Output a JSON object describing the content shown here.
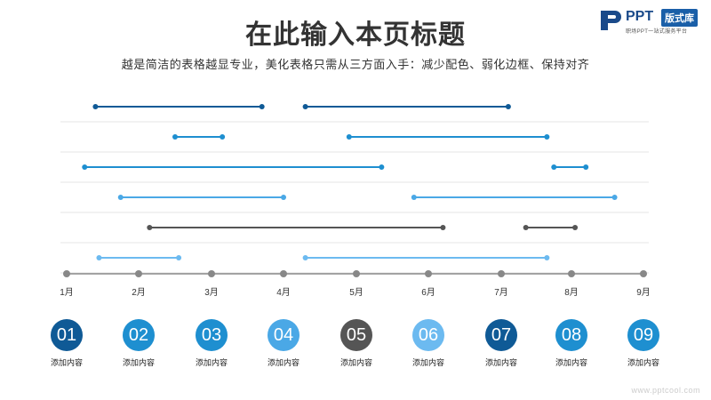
{
  "header": {
    "title": "在此输入本页标题",
    "subtitle": "越是简洁的表格越显专业，美化表格只需从三方面入手：减少配色、弱化边框、保持对齐"
  },
  "logo": {
    "brand": "PPT",
    "badge": "版式库",
    "tagline": "职场PPT一站式服务平台"
  },
  "colors": {
    "dark_blue": "#0f5a96",
    "mid_blue": "#1e8fd0",
    "light_blue": "#4aa8e6",
    "gray": "#555555",
    "pale_blue": "#6cbaf0",
    "axis": "#888888",
    "grid": "#e6e6e6"
  },
  "chart_data": {
    "type": "gantt",
    "x_axis": {
      "ticks": [
        "1月",
        "2月",
        "3月",
        "4月",
        "5月",
        "6月",
        "7月",
        "8月",
        "9月"
      ],
      "range": [
        1,
        9
      ]
    },
    "rows": [
      {
        "color": "#0f5a96",
        "segments": [
          [
            1.4,
            3.7
          ],
          [
            4.3,
            7.1
          ]
        ]
      },
      {
        "color": "#1e8fd0",
        "segments": [
          [
            2.5,
            3.15
          ],
          [
            4.9,
            7.65
          ]
        ]
      },
      {
        "color": "#1e8fd0",
        "segments": [
          [
            1.25,
            5.35
          ],
          [
            7.75,
            8.2
          ]
        ]
      },
      {
        "color": "#4aa8e6",
        "segments": [
          [
            1.75,
            4.0
          ],
          [
            5.8,
            8.6
          ]
        ]
      },
      {
        "color": "#555555",
        "segments": [
          [
            2.15,
            6.2
          ],
          [
            7.35,
            8.05
          ]
        ]
      },
      {
        "color": "#6cbaf0",
        "segments": [
          [
            1.45,
            2.55
          ],
          [
            4.3,
            7.65
          ]
        ]
      }
    ]
  },
  "items": [
    {
      "number": "01",
      "label": "添加内容",
      "color": "#0f5a96"
    },
    {
      "number": "02",
      "label": "添加内容",
      "color": "#1e8fd0"
    },
    {
      "number": "03",
      "label": "添加内容",
      "color": "#1e8fd0"
    },
    {
      "number": "04",
      "label": "添加内容",
      "color": "#4aa8e6"
    },
    {
      "number": "05",
      "label": "添加内容",
      "color": "#555555"
    },
    {
      "number": "06",
      "label": "添加内容",
      "color": "#6cbaf0"
    },
    {
      "number": "07",
      "label": "添加内容",
      "color": "#0f5a96"
    },
    {
      "number": "08",
      "label": "添加内容",
      "color": "#1e8fd0"
    },
    {
      "number": "09",
      "label": "添加内容",
      "color": "#1e8fd0"
    }
  ],
  "watermark": "www.pptcool.com"
}
